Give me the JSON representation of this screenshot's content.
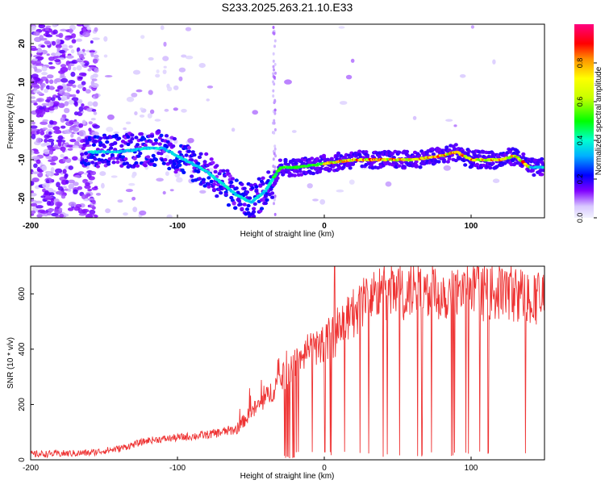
{
  "figure_title": "S233.2025.263.21.10.E33",
  "chart_data": [
    {
      "type": "heatmap",
      "xlabel": "Height of straight line (km)",
      "ylabel": "Frequency (Hz)",
      "xlim": [
        -200,
        150
      ],
      "ylim": [
        -25,
        25
      ],
      "xticks": [
        -200,
        -100,
        0,
        100
      ],
      "yticks": [
        -20,
        -10,
        0,
        10,
        20
      ],
      "colorbar": {
        "label": "Normalized spectral amplitude",
        "range": [
          0,
          1
        ],
        "ticks": [
          "0.0",
          "0.2",
          "0.4",
          "0.6",
          "0.8"
        ]
      },
      "ridge": {
        "description_points_x": [
          -160,
          -140,
          -120,
          -110,
          -100,
          -90,
          -80,
          -70,
          -60,
          -50,
          -40,
          -35,
          -30,
          -20,
          0,
          20,
          40,
          60,
          80,
          90,
          100,
          110,
          120,
          130,
          140,
          150
        ],
        "description_points_y": [
          -8,
          -8,
          -7,
          -7,
          -9,
          -11,
          -13,
          -16,
          -19,
          -21,
          -18,
          -15,
          -12,
          -12,
          -11,
          -10,
          -10,
          -10,
          -9,
          -8,
          -10,
          -10,
          -10,
          -9,
          -12,
          -12
        ]
      }
    },
    {
      "type": "line",
      "xlabel": "Height of straight line (km)",
      "ylabel": "SNR (10 * v/v)",
      "xlim": [
        -200,
        150
      ],
      "ylim": [
        0,
        700
      ],
      "xticks": [
        -200,
        -100,
        0,
        100
      ],
      "yticks": [
        0,
        200,
        400,
        600
      ],
      "series": [
        {
          "name": "SNR",
          "color": "#ee3333",
          "trend_x": [
            -200,
            -180,
            -160,
            -140,
            -120,
            -100,
            -80,
            -60,
            -50,
            -40,
            -30,
            -20,
            -10,
            0,
            10,
            20,
            30,
            40,
            60,
            80,
            100,
            120,
            140,
            150
          ],
          "trend_y": [
            20,
            22,
            25,
            40,
            70,
            80,
            90,
            110,
            170,
            220,
            290,
            340,
            390,
            420,
            460,
            530,
            590,
            600,
            610,
            605,
            600,
            610,
            590,
            590
          ]
        }
      ]
    }
  ],
  "colors": {
    "line": "#ee3333"
  }
}
